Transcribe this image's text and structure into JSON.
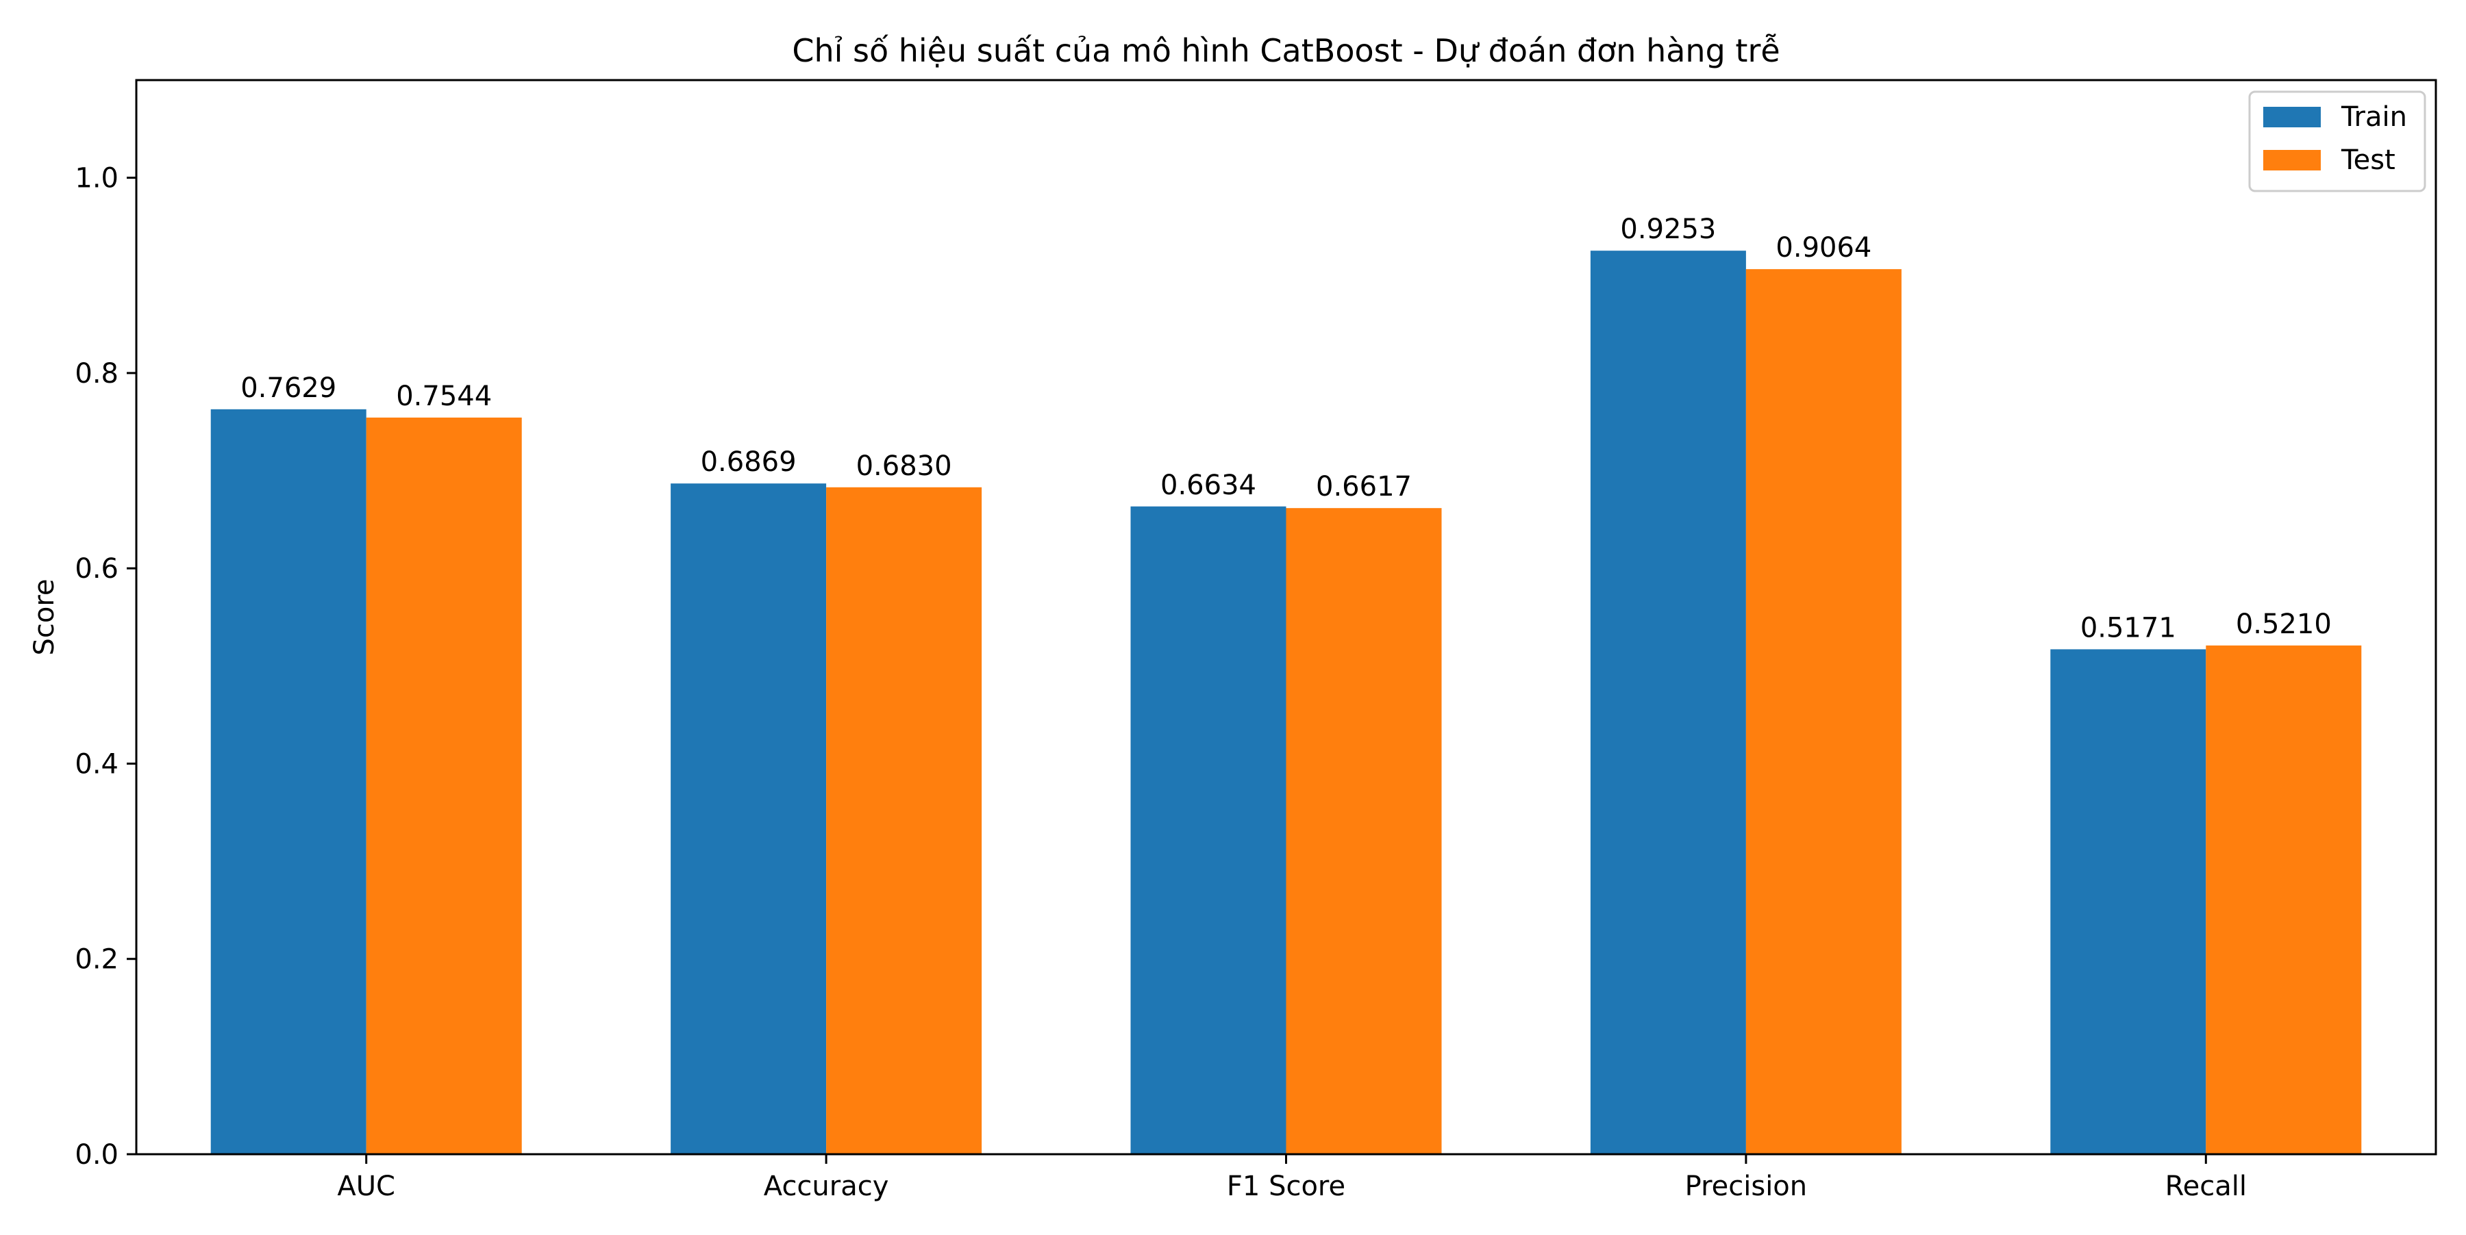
{
  "chart_data": {
    "type": "bar",
    "title": "Chỉ số hiệu suất của mô hình CatBoost - Dự đoán đơn hàng trễ",
    "xlabel": "",
    "ylabel": "Score",
    "categories": [
      "AUC",
      "Accuracy",
      "F1 Score",
      "Precision",
      "Recall"
    ],
    "series": [
      {
        "name": "Train",
        "color": "#1f77b4",
        "values": [
          0.7629,
          0.6869,
          0.6634,
          0.9253,
          0.5171
        ],
        "labels": [
          "0.7629",
          "0.6869",
          "0.6634",
          "0.9253",
          "0.5171"
        ]
      },
      {
        "name": "Test",
        "color": "#ff7f0e",
        "values": [
          0.7544,
          0.683,
          0.6617,
          0.9064,
          0.521
        ],
        "labels": [
          "0.7544",
          "0.6830",
          "0.6617",
          "0.9064",
          "0.5210"
        ]
      }
    ],
    "ylim": [
      0,
      1.1
    ],
    "yticks": [
      0.0,
      0.2,
      0.4,
      0.6,
      0.8,
      1.0
    ],
    "ytick_labels": [
      "0.0",
      "0.2",
      "0.4",
      "0.6",
      "0.8",
      "1.0"
    ],
    "grid": false,
    "legend_position": "top-right"
  }
}
